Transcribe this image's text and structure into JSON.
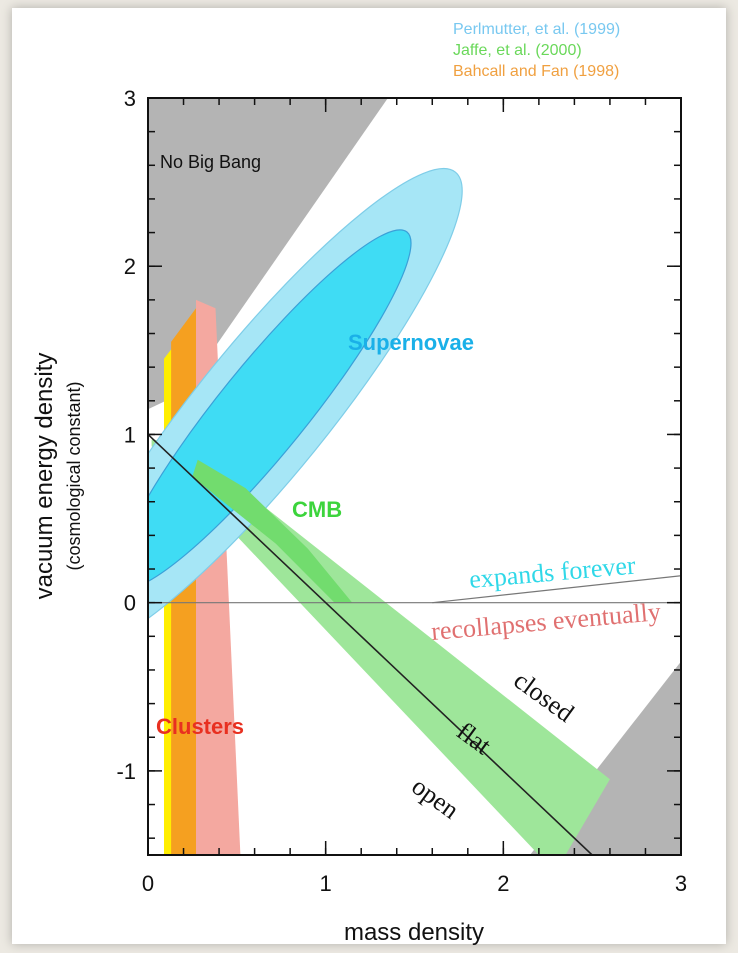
{
  "chart_data": {
    "type": "contour",
    "xlabel": "mass density",
    "ylabel": "vacuum energy density",
    "ylabel_sub": "(cosmological constant)",
    "xlim": [
      0,
      3
    ],
    "ylim": [
      -1.5,
      3
    ],
    "x_ticks": [
      "0",
      "1",
      "2",
      "3"
    ],
    "y_ticks": [
      "-1",
      "0",
      "1",
      "2",
      "3"
    ],
    "x_tick_values": [
      0,
      1,
      2,
      3
    ],
    "y_tick_values": [
      -1,
      0,
      1,
      2,
      3
    ],
    "legend": [
      {
        "label": "Perlmutter, et al. (1999)",
        "color": "#78c8f0"
      },
      {
        "label": "Jaffe, et al. (2000)",
        "color": "#6ad85a"
      },
      {
        "label": "Bahcall and Fan (1998)",
        "color": "#f0a040"
      }
    ],
    "regions": {
      "no_big_bang": {
        "label": "No Big Bang",
        "color": "#b4b4b4"
      },
      "supernovae": {
        "label": "Supernovae",
        "center": [
          0.65,
          1.15
        ],
        "outer_color": "#a6e6f6",
        "inner_color": "#3fdcf4",
        "label_color": "#1ab0e8"
      },
      "cmb": {
        "label": "CMB",
        "color": "#9ee69a",
        "label_color": "#3cd43c"
      },
      "clusters": {
        "label": "Clusters",
        "label_color": "#e83020",
        "bands": [
          {
            "color": "#ffee00",
            "x_range": [
              0.09,
              0.27
            ]
          },
          {
            "color": "#f5a020",
            "x_range": [
              0.13,
              0.27
            ]
          },
          {
            "color": "#f4a8a0",
            "x_range": [
              0.27,
              0.52
            ]
          }
        ]
      }
    },
    "annotations": {
      "expands_forever": {
        "text": "expands forever",
        "color": "#30d8e8"
      },
      "recollapses": {
        "text": "recollapses eventually",
        "color": "#e07070"
      },
      "closed": {
        "text": "closed",
        "color": "#111111"
      },
      "flat": {
        "text": "flat",
        "color": "#111111"
      },
      "open": {
        "text": "open",
        "color": "#111111"
      }
    },
    "lines": {
      "flat": {
        "points": [
          [
            0,
            1
          ],
          [
            2.5,
            -1.5
          ]
        ]
      },
      "zero_lambda": {
        "points": [
          [
            0,
            0
          ],
          [
            3,
            0
          ]
        ]
      }
    }
  }
}
